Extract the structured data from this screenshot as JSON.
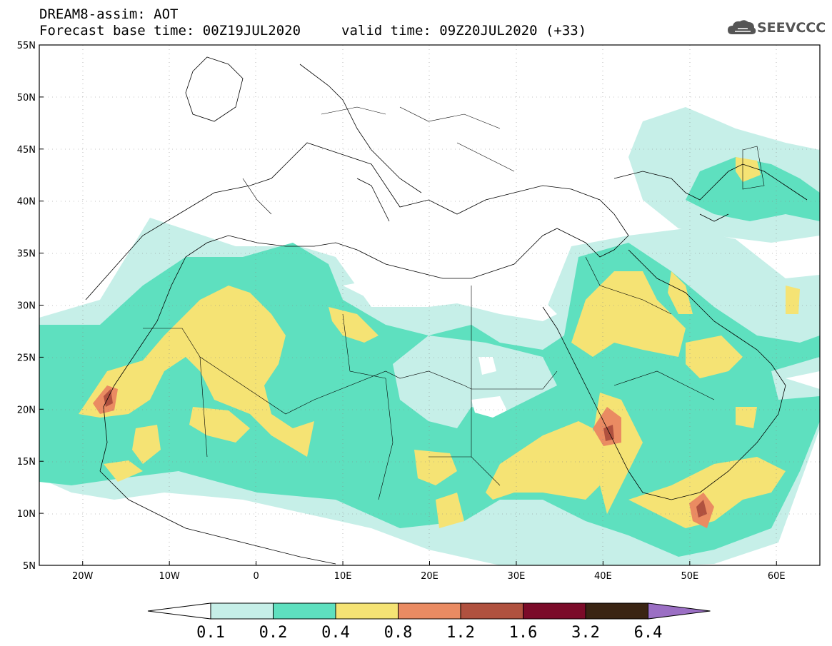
{
  "header": {
    "title_line1": "DREAM8-assim: AOT",
    "title_line2": "Forecast base time: 00Z19JUL2020",
    "valid_time": "valid time: 09Z20JUL2020 (+33)"
  },
  "logo": {
    "text": "SEEVCCC",
    "icon": "cloud-icon"
  },
  "map": {
    "lon_range": [
      -25,
      65
    ],
    "lat_range": [
      5,
      55
    ],
    "x_ticks": [
      "20W",
      "10W",
      "0",
      "10E",
      "20E",
      "30E",
      "40E",
      "50E",
      "60E"
    ],
    "y_ticks": [
      "55N",
      "50N",
      "45N",
      "40N",
      "35N",
      "30N",
      "25N",
      "20N",
      "15N",
      "10N",
      "5N"
    ]
  },
  "colorbar": {
    "labels": [
      "0.1",
      "0.2",
      "0.4",
      "0.8",
      "1.2",
      "1.6",
      "3.2",
      "6.4"
    ],
    "colors": [
      "#c6efe8",
      "#5ee0bf",
      "#f5e374",
      "#ea8b62",
      "#b0513f",
      "#7b0b29",
      "#3a2413",
      "#9b6fc4"
    ]
  }
}
